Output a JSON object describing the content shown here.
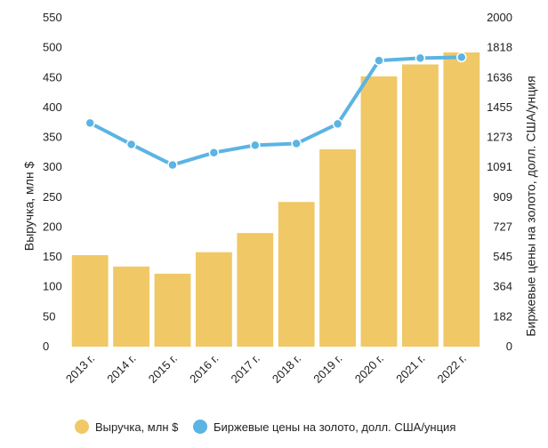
{
  "chart_data": {
    "type": "bar",
    "categories": [
      "2013 г.",
      "2014 г.",
      "2015 г.",
      "2016 г.",
      "2017 г.",
      "2018 г.",
      "2019 г.",
      "2020 г.",
      "2021 г.",
      "2022 г."
    ],
    "series": [
      {
        "name": "Выручка, млн $",
        "type": "bar",
        "axis": "left",
        "color": "#F0C866",
        "values": [
          153,
          134,
          122,
          158,
          190,
          242,
          330,
          452,
          472,
          492
        ]
      },
      {
        "name": "Биржевые цены на золото, долл. США/унция",
        "type": "line",
        "axis": "right",
        "color": "#5BB4E4",
        "values": [
          1360,
          1230,
          1105,
          1180,
          1225,
          1235,
          1355,
          1740,
          1755,
          1760
        ]
      }
    ],
    "ylabel": "Выручка, млн $",
    "y2label": "Биржевые цены на золото, долл. США/унция",
    "ylim": [
      0,
      550
    ],
    "y2lim": [
      0,
      2000
    ],
    "yticks": [
      "0",
      "50",
      "100",
      "150",
      "200",
      "250",
      "300",
      "350",
      "400",
      "450",
      "500",
      "550"
    ],
    "y2ticks": [
      "0",
      "182",
      "364",
      "545",
      "727",
      "909",
      "1091",
      "1273",
      "1455",
      "1636",
      "1818",
      "2000"
    ],
    "grid": false,
    "legend_position": "bottom"
  }
}
